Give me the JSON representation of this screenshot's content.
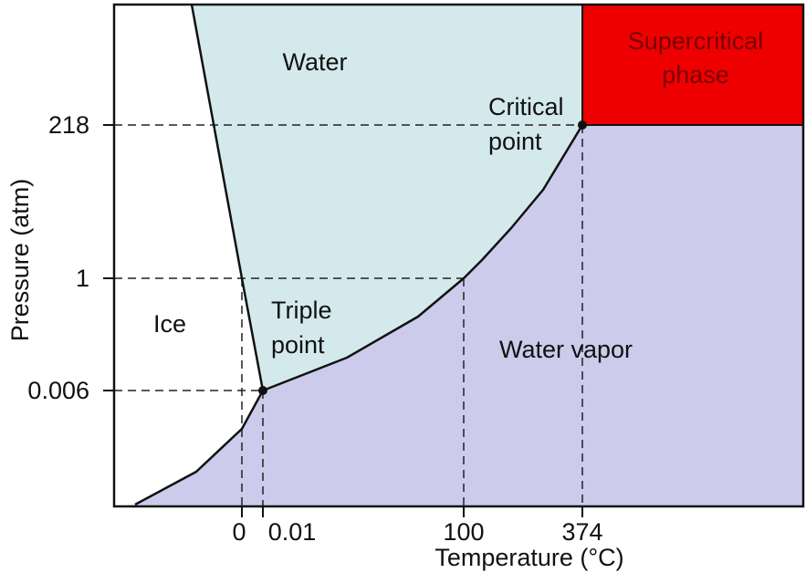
{
  "axes": {
    "y_label": "Pressure (atm)",
    "x_label": "Temperature (°C)",
    "y_ticks": [
      "218",
      "1",
      "0.006"
    ],
    "x_ticks": [
      "0",
      "0.01",
      "100",
      "374"
    ]
  },
  "regions": {
    "water": [
      "Water"
    ],
    "supercritical": [
      "Supercritical",
      "phase"
    ],
    "ice": [
      "Ice"
    ],
    "vapor": [
      "Water vapor"
    ]
  },
  "points": {
    "critical": [
      "Critical",
      "point"
    ],
    "triple": [
      "Triple",
      "point"
    ]
  }
}
